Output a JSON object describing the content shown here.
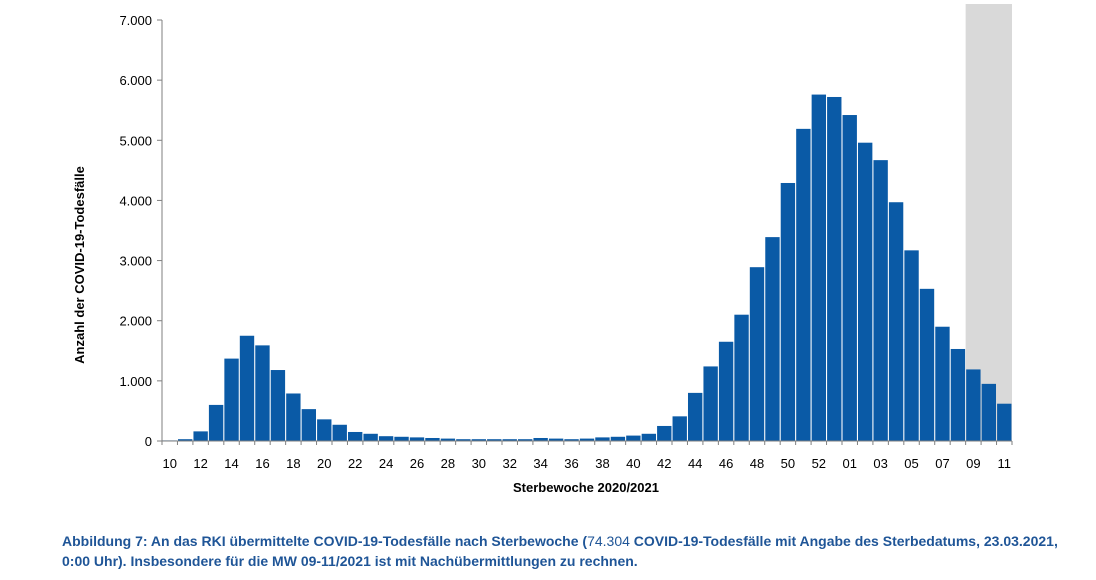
{
  "chart_data": {
    "type": "bar",
    "title": "",
    "xlabel": "Sterbewoche 2020/2021",
    "ylabel": "Anzahl der COVID-19-Todesfälle",
    "ylim": [
      0,
      7000
    ],
    "yticks": [
      "0",
      "1.000",
      "2.000",
      "3.000",
      "4.000",
      "5.000",
      "6.000",
      "7.000"
    ],
    "ytick_values": [
      0,
      1000,
      2000,
      3000,
      4000,
      5000,
      6000,
      7000
    ],
    "grid": false,
    "bar_color": "#0a5aa6",
    "highlight_color": "#d9d9d9",
    "highlight_categories": [
      "09",
      "10",
      "11"
    ],
    "categories": [
      "10",
      "11",
      "12",
      "13",
      "14",
      "15",
      "16",
      "17",
      "18",
      "19",
      "20",
      "21",
      "22",
      "23",
      "24",
      "25",
      "26",
      "27",
      "28",
      "29",
      "30",
      "31",
      "32",
      "33",
      "34",
      "35",
      "36",
      "37",
      "38",
      "39",
      "40",
      "41",
      "42",
      "43",
      "44",
      "45",
      "46",
      "47",
      "48",
      "49",
      "50",
      "51",
      "52",
      "53",
      "01",
      "02",
      "03",
      "04",
      "05",
      "06",
      "07",
      "08",
      "09",
      "10",
      "11"
    ],
    "x_tick_labels": [
      "10",
      "12",
      "14",
      "16",
      "18",
      "20",
      "22",
      "24",
      "26",
      "28",
      "30",
      "32",
      "34",
      "36",
      "38",
      "40",
      "42",
      "44",
      "46",
      "48",
      "50",
      "52",
      "01",
      "03",
      "05",
      "07",
      "09",
      "11"
    ],
    "values": [
      10,
      30,
      160,
      600,
      1370,
      1750,
      1590,
      1180,
      790,
      530,
      360,
      270,
      150,
      120,
      80,
      70,
      60,
      50,
      40,
      30,
      30,
      30,
      30,
      30,
      50,
      40,
      30,
      40,
      60,
      70,
      90,
      120,
      250,
      410,
      800,
      1240,
      1650,
      2100,
      2890,
      3390,
      4290,
      5190,
      5760,
      5720,
      5420,
      4960,
      4670,
      3970,
      3170,
      2530,
      1900,
      1530,
      1190,
      950,
      620
    ]
  },
  "caption": {
    "part1": "Abbildung 7: An das RKI übermittelte COVID-19-Todesfälle nach Sterbewoche (",
    "part2": "74.304",
    "part3": " COVID-19-Todesfälle mit Angabe des Sterbedatums, 23.03.2021, 0:00 Uhr). Insbesondere für die MW 09-11/2021 ist mit Nachübermittlungen zu rechnen."
  }
}
